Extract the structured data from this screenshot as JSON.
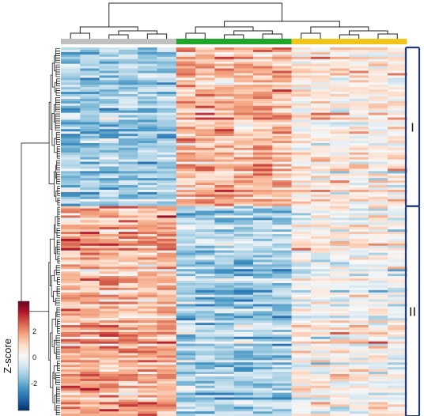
{
  "chart_data": {
    "type": "heatmap",
    "title": "",
    "xlabel": "",
    "ylabel": "",
    "groups": [
      {
        "color": "#c0c0c0",
        "columns": 6
      },
      {
        "color": "#1ea62a",
        "columns": 6
      },
      {
        "color": "#f0c419",
        "columns": 6
      }
    ],
    "row_clusters": [
      {
        "label": "I",
        "rows": 68
      },
      {
        "label": "II",
        "rows": 90
      }
    ],
    "colorbar": {
      "label": "Z-score",
      "ticks": [
        "2",
        "0",
        "-2"
      ],
      "range": [
        -3,
        3
      ],
      "colors": [
        "#053061",
        "#2166ac",
        "#4393c3",
        "#92c5de",
        "#d1e5f0",
        "#f7f7f7",
        "#fddbc7",
        "#f4a582",
        "#d6604d",
        "#b2182b",
        "#67001f"
      ]
    },
    "pattern": {
      "description_free": true,
      "cluster_I_group_means": [
        -1.1,
        0.9,
        0.2
      ],
      "cluster_II_group_means": [
        1.0,
        -1.0,
        0.0
      ]
    }
  }
}
